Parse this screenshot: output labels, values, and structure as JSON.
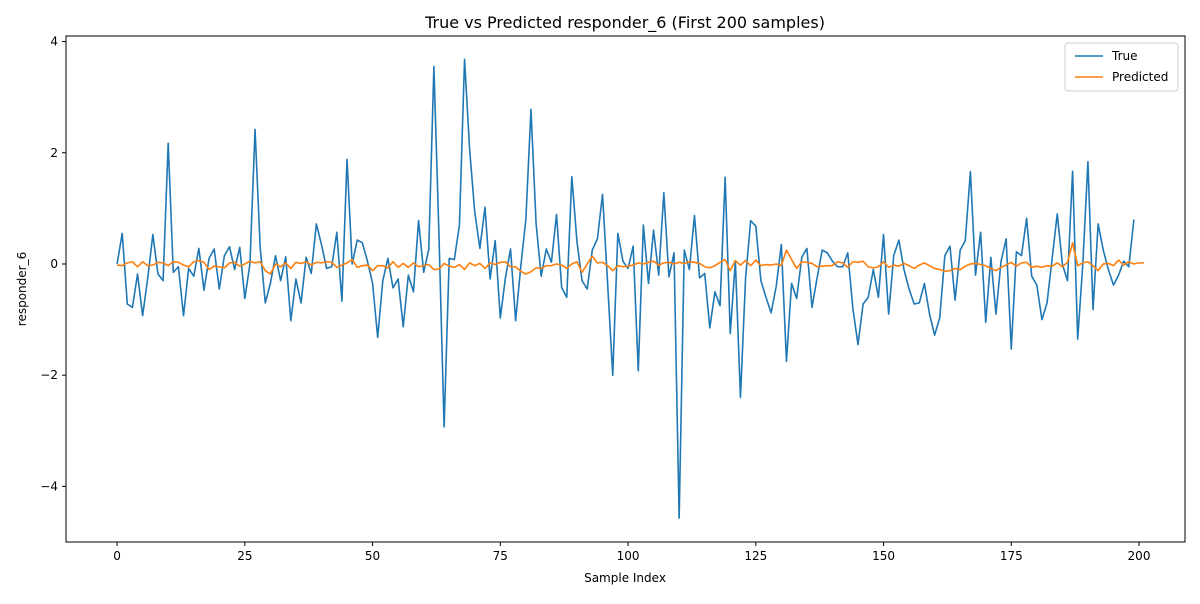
{
  "chart_data": {
    "type": "line",
    "title": "True vs Predicted responder_6 (First 200 samples)",
    "xlabel": "Sample Index",
    "ylabel": "responder_6",
    "xlim": [
      -10,
      209
    ],
    "ylim": [
      -5,
      4.1
    ],
    "xticks": [
      0,
      25,
      50,
      75,
      100,
      125,
      150,
      175,
      200
    ],
    "yticks": [
      -4,
      -2,
      0,
      2,
      4
    ],
    "legend_position": "top-right",
    "grid": false,
    "series": [
      {
        "name": "True",
        "color": "#1f77b4",
        "values": [
          0.0,
          0.55,
          -0.72,
          -0.78,
          -0.18,
          -0.93,
          -0.25,
          0.53,
          -0.18,
          -0.3,
          2.17,
          -0.15,
          -0.05,
          -0.93,
          -0.08,
          -0.22,
          0.28,
          -0.47,
          0.1,
          0.27,
          -0.45,
          0.15,
          0.31,
          -0.1,
          0.3,
          -0.62,
          0.0,
          2.42,
          0.3,
          -0.7,
          -0.35,
          0.15,
          -0.3,
          0.13,
          -1.02,
          -0.27,
          -0.7,
          0.12,
          -0.17,
          0.72,
          0.35,
          -0.08,
          -0.05,
          0.57,
          -0.67,
          1.88,
          0.0,
          0.43,
          0.38,
          0.05,
          -0.35,
          -1.32,
          -0.3,
          0.1,
          -0.43,
          -0.27,
          -1.13,
          -0.2,
          -0.5,
          0.78,
          -0.15,
          0.26,
          3.55,
          0.5,
          -2.93,
          0.1,
          0.08,
          0.7,
          3.68,
          2.05,
          0.93,
          0.28,
          1.02,
          -0.27,
          0.42,
          -0.97,
          -0.25,
          0.27,
          -1.02,
          -0.05,
          0.8,
          2.78,
          0.73,
          -0.22,
          0.27,
          0.03,
          0.89,
          -0.42,
          -0.6,
          1.57,
          0.4,
          -0.3,
          -0.45,
          0.25,
          0.45,
          1.25,
          -0.35,
          -2.0,
          0.55,
          0.05,
          -0.08,
          0.32,
          -1.92,
          0.7,
          -0.35,
          0.61,
          -0.2,
          1.28,
          -0.23,
          0.2,
          -4.57,
          0.25,
          -0.1,
          0.87,
          -0.25,
          -0.17,
          -1.15,
          -0.5,
          -0.75,
          1.56,
          -1.25,
          0.05,
          -2.4,
          -0.25,
          0.78,
          0.68,
          -0.3,
          -0.6,
          -0.88,
          -0.4,
          0.35,
          -1.75,
          -0.35,
          -0.62,
          0.12,
          0.28,
          -0.78,
          -0.25,
          0.25,
          0.2,
          0.05,
          -0.05,
          -0.05,
          0.2,
          -0.8,
          -1.45,
          -0.72,
          -0.6,
          -0.1,
          -0.6,
          0.53,
          -0.9,
          0.15,
          0.43,
          -0.1,
          -0.45,
          -0.72,
          -0.7,
          -0.35,
          -0.9,
          -1.28,
          -0.97,
          0.15,
          0.32,
          -0.65,
          0.25,
          0.42,
          1.66,
          -0.2,
          0.57,
          -1.05,
          0.12,
          -0.9,
          0.05,
          0.45,
          -1.53,
          0.22,
          0.15,
          0.82,
          -0.22,
          -0.38,
          -1.0,
          -0.7,
          0.1,
          0.9,
          0.0,
          -0.3,
          1.67,
          -1.35,
          0.0,
          1.84,
          -0.82,
          0.72,
          0.25,
          -0.1,
          -0.38,
          -0.2,
          0.05,
          -0.05,
          0.8
        ]
      },
      {
        "name": "Predicted",
        "color": "#ff7f0e",
        "values": [
          -0.02,
          -0.03,
          0.02,
          0.04,
          -0.05,
          0.04,
          -0.03,
          -0.02,
          0.03,
          0.02,
          -0.03,
          0.04,
          0.03,
          -0.02,
          -0.05,
          0.04,
          0.06,
          0.03,
          -0.1,
          -0.04,
          -0.05,
          -0.07,
          0.02,
          0.03,
          -0.04,
          0.0,
          0.05,
          0.02,
          0.04,
          -0.12,
          -0.18,
          0.0,
          -0.05,
          0.02,
          -0.08,
          0.03,
          0.01,
          0.04,
          -0.02,
          0.03,
          0.02,
          0.04,
          0.03,
          -0.06,
          -0.02,
          0.02,
          0.08,
          -0.06,
          -0.03,
          -0.02,
          -0.12,
          -0.03,
          -0.03,
          -0.07,
          0.04,
          -0.06,
          0.01,
          -0.06,
          0.02,
          -0.05,
          -0.03,
          -0.01,
          -0.1,
          -0.09,
          0.01,
          -0.04,
          -0.06,
          -0.01,
          -0.1,
          0.02,
          -0.03,
          0.01,
          -0.08,
          0.02,
          -0.01,
          0.03,
          0.04,
          -0.05,
          -0.05,
          -0.13,
          -0.18,
          -0.14,
          -0.07,
          -0.08,
          -0.03,
          -0.03,
          0.0,
          -0.02,
          -0.08,
          0.0,
          0.04,
          -0.15,
          0.0,
          0.14,
          0.02,
          0.03,
          -0.03,
          -0.12,
          -0.03,
          -0.05,
          -0.04,
          -0.02,
          0.02,
          0.0,
          0.03,
          0.05,
          -0.02,
          0.02,
          0.03,
          0.0,
          0.03,
          0.01,
          0.04,
          0.03,
          0.01,
          -0.05,
          -0.07,
          -0.03,
          0.03,
          0.08,
          -0.12,
          0.06,
          -0.02,
          0.06,
          -0.03,
          0.07,
          -0.03,
          -0.01,
          -0.02,
          0.0,
          -0.03,
          0.25,
          0.08,
          -0.08,
          0.04,
          0.03,
          0.01,
          -0.05,
          -0.04,
          -0.03,
          -0.03,
          0.04,
          0.02,
          -0.06,
          0.04,
          0.03,
          0.05,
          -0.05,
          -0.07,
          -0.05,
          0.04,
          -0.06,
          -0.02,
          -0.04,
          0.01,
          -0.03,
          -0.08,
          -0.02,
          0.02,
          -0.03,
          -0.08,
          -0.1,
          -0.13,
          -0.12,
          -0.08,
          -0.1,
          -0.04,
          0.0,
          0.01,
          -0.01,
          -0.03,
          -0.08,
          -0.12,
          -0.06,
          -0.02,
          0.03,
          -0.04,
          0.02,
          0.03,
          -0.06,
          -0.04,
          -0.06,
          -0.03,
          -0.04,
          0.02,
          -0.05,
          0.03,
          0.38,
          -0.03,
          0.02,
          0.04,
          -0.03,
          -0.12,
          0.0,
          0.01,
          -0.03,
          0.07,
          -0.02,
          0.04,
          0.0,
          0.02,
          0.02
        ]
      }
    ]
  }
}
